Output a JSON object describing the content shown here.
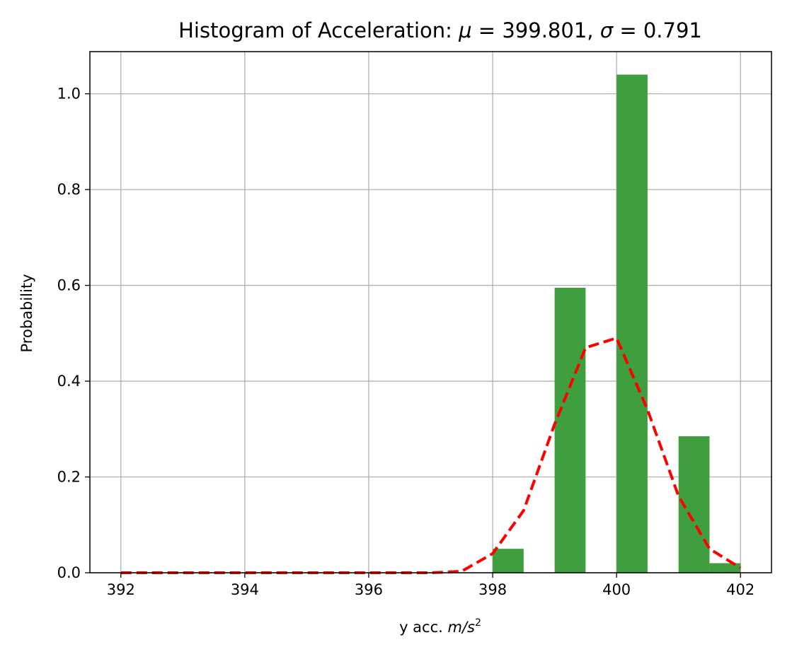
{
  "chart_data": {
    "type": "bar",
    "title": {
      "prefix": "Histogram of Acceleration",
      "mu_symbol": "μ",
      "mu_value": "399.801",
      "sigma_symbol": "σ",
      "sigma_value": "0.791"
    },
    "xlabel": {
      "text": "y acc.",
      "unit": "m/s",
      "exponent": "2"
    },
    "ylabel": "Probability",
    "xlim": [
      391.5,
      402.5
    ],
    "ylim": [
      0.0,
      1.088
    ],
    "x_ticks": [
      392,
      394,
      396,
      398,
      400,
      402
    ],
    "y_ticks": [
      0.0,
      0.2,
      0.4,
      0.6,
      0.8,
      1.0
    ],
    "x_tick_labels": [
      "392",
      "394",
      "396",
      "398",
      "400",
      "402"
    ],
    "y_tick_labels": [
      "0.0",
      "0.2",
      "0.4",
      "0.6",
      "0.8",
      "1.0"
    ],
    "grid": true,
    "bar_color": "#3f9f3f",
    "bars": [
      {
        "x0": 398.0,
        "x1": 398.5,
        "value": 0.05
      },
      {
        "x0": 399.0,
        "x1": 399.5,
        "value": 0.595
      },
      {
        "x0": 400.0,
        "x1": 400.5,
        "value": 1.04
      },
      {
        "x0": 401.0,
        "x1": 401.5,
        "value": 0.285
      },
      {
        "x0": 401.5,
        "x1": 402.0,
        "value": 0.02
      }
    ],
    "fit_line": {
      "color": "#ff0000",
      "style": "dashed",
      "x": [
        392.0,
        392.5,
        393.0,
        393.5,
        394.0,
        394.5,
        395.0,
        395.5,
        396.0,
        396.5,
        397.0,
        397.5,
        398.0,
        398.5,
        399.0,
        399.5,
        400.0,
        400.5,
        401.0,
        401.5,
        402.0
      ],
      "y": [
        0.0,
        0.0,
        0.0,
        0.0,
        0.0,
        0.0,
        0.0,
        0.0,
        0.0,
        0.0,
        0.0,
        0.003,
        0.04,
        0.13,
        0.31,
        0.47,
        0.49,
        0.34,
        0.16,
        0.05,
        0.01
      ]
    }
  }
}
